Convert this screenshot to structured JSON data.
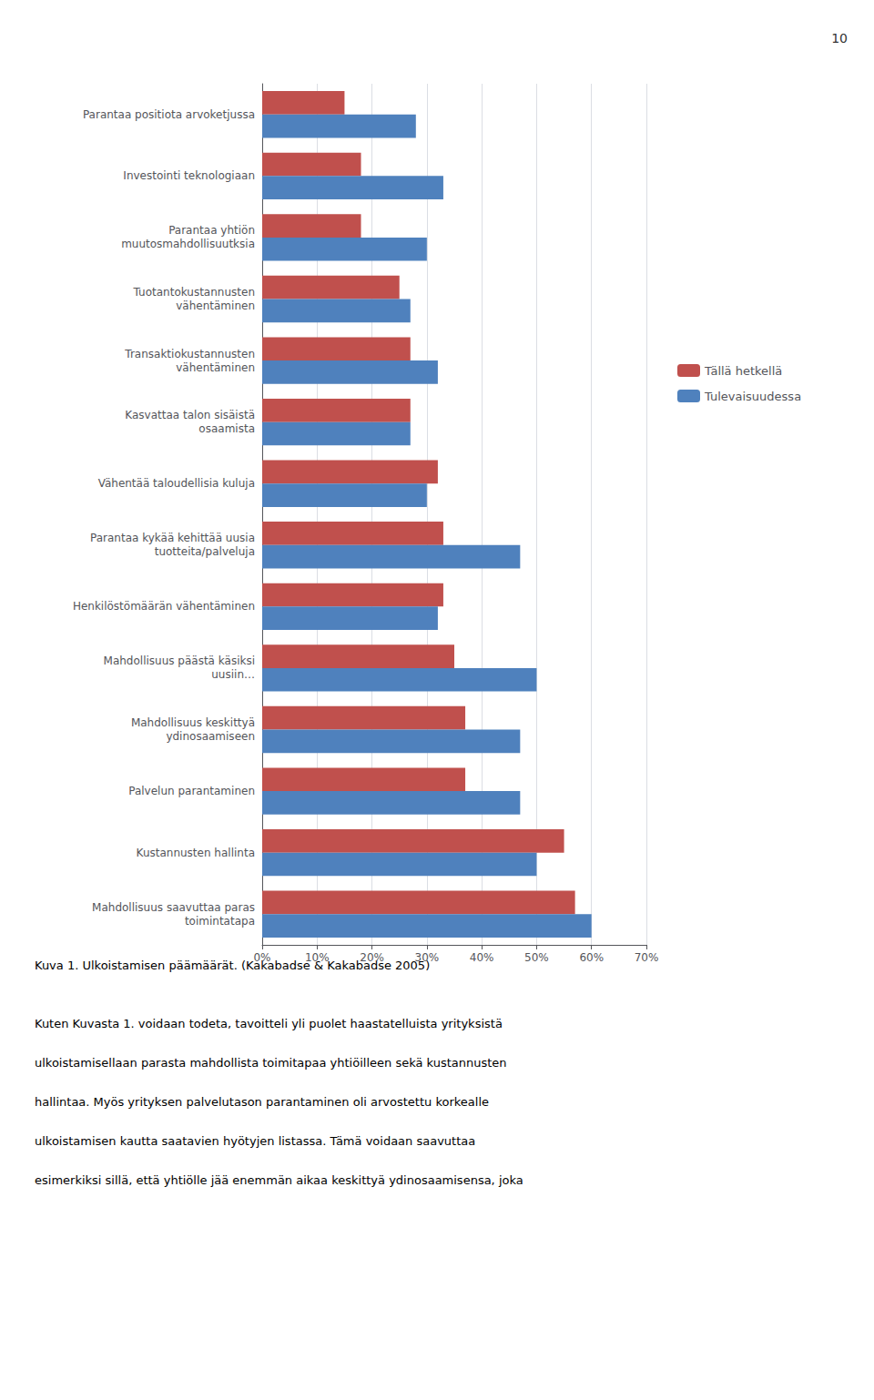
{
  "chart_data": {
    "type": "bar",
    "orientation": "horizontal",
    "categories": [
      "Parantaa positiota arvoketjussa",
      "Investointi teknologiaan",
      "Parantaa yhtiön\nmuutosmahdollisuutksia",
      "Tuotantokustannusten\nvähentäminen",
      "Transaktiokustannusten\nvähentäminen",
      "Kasvattaa talon sisäistä\nosaamista",
      "Vähentää taloudellisia kuluja",
      "Parantaa kykää kehittää uusia\ntuotteita/palveluja",
      "Henkilöstömäärän vähentäminen",
      "Mahdollisuus päästä käsiksi\nuusiin…",
      "Mahdollisuus keskittyä\nydinosaamiseen",
      "Palvelun parantaminen",
      "Kustannusten hallinta",
      "Mahdollisuus saavuttaa paras\ntoimintatapa"
    ],
    "series": [
      {
        "name": "Tällä hetkellä",
        "color": "#c0504d",
        "values": [
          15,
          18,
          18,
          25,
          27,
          27,
          32,
          33,
          33,
          35,
          37,
          37,
          55,
          57
        ]
      },
      {
        "name": "Tulevaisuudessa",
        "color": "#4f81bd",
        "values": [
          28,
          33,
          30,
          27,
          32,
          27,
          30,
          47,
          32,
          50,
          47,
          47,
          50,
          60
        ]
      }
    ],
    "xlim": [
      0,
      70
    ],
    "xticks": [
      {
        "value": 0,
        "label": "0%"
      },
      {
        "value": 10,
        "label": "10%"
      },
      {
        "value": 20,
        "label": "20%"
      },
      {
        "value": 30,
        "label": "30%"
      },
      {
        "value": 40,
        "label": "40%"
      },
      {
        "value": 50,
        "label": "50%"
      },
      {
        "value": 60,
        "label": "60%"
      },
      {
        "value": 70,
        "label": "70%"
      }
    ],
    "grid": true,
    "legend": "right",
    "annotations": [
      "10",
      "Kuva 1. Ulkoistamisen päämäärät. (Kakabadse & Kakabadse 2005)",
      "Kuten Kuvasta 1. voidaan todeta, tavoitteli yli puolet haastatelluista yrityksistä",
      "ulkoistamisellaan parasta mahdollista toimitapaa yhtiöilleen sekä kustannusten",
      "hallintaa. Myös yrityksen palvelutason parantaminen oli arvostettu korkealle",
      "ulkoistamisen kautta saatavien hyötyjen listassa. Tämä voidaan saavuttaa",
      "esimerkiksi sillä, että yhtiölle jää enemmän aikaa keskittyä ydinosaamisensa, joka"
    ]
  }
}
